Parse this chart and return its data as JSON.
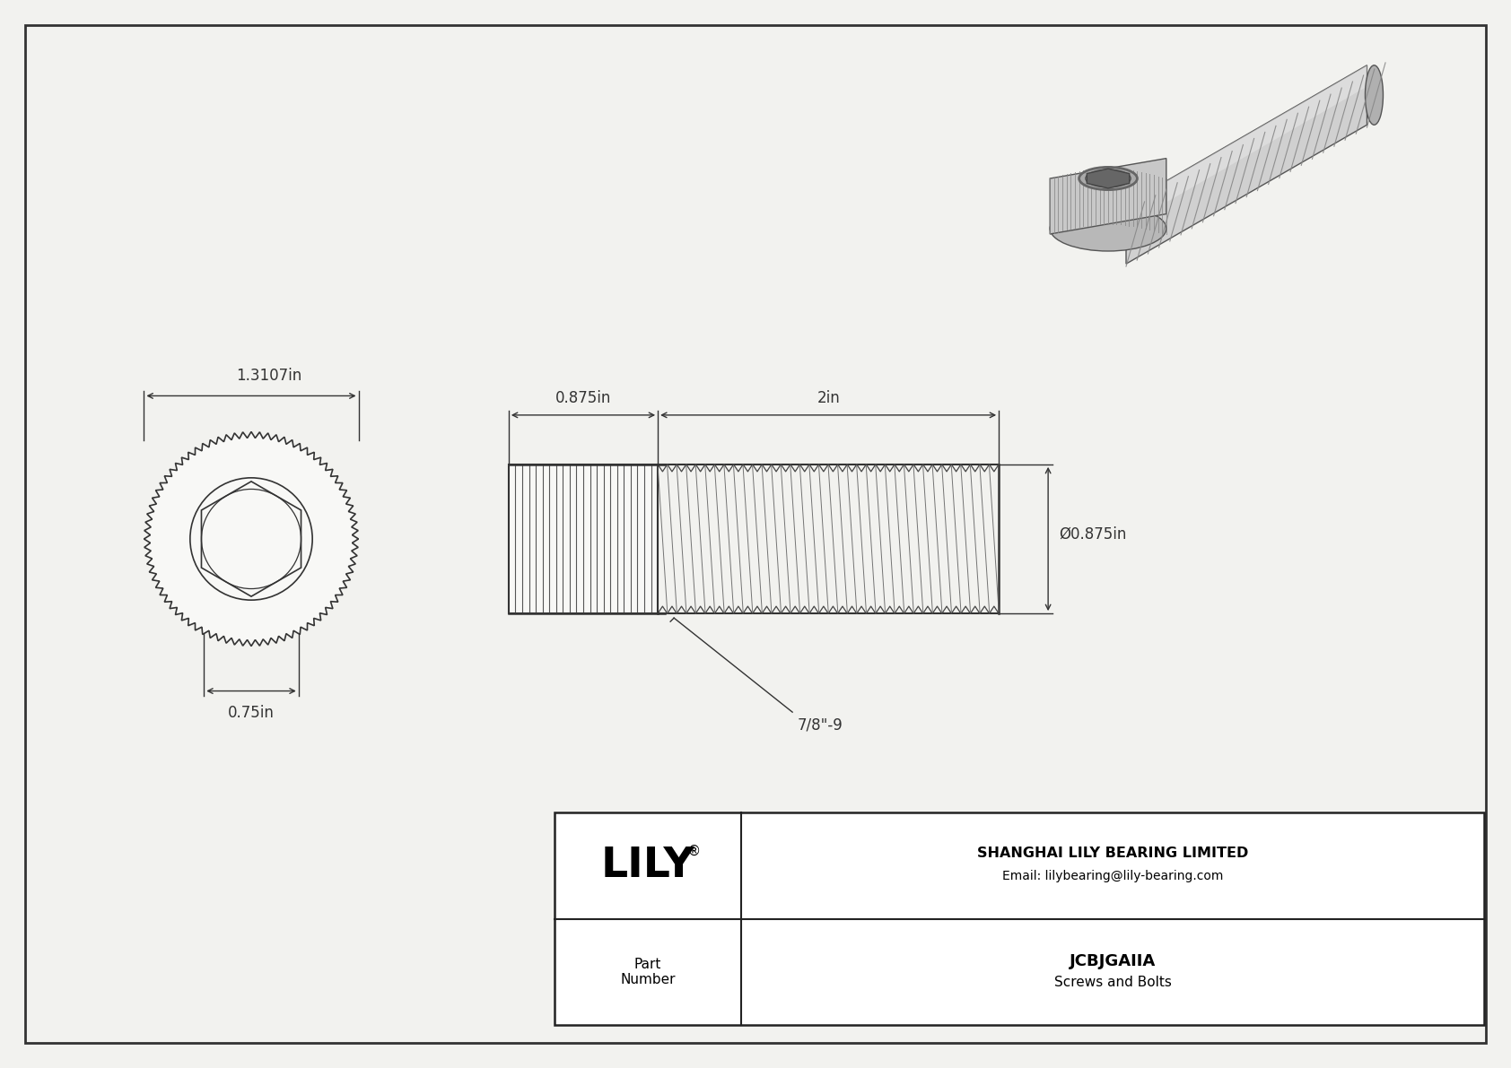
{
  "bg_color": "#f2f2ef",
  "border_color": "#333333",
  "line_color": "#333333",
  "dim_color": "#333333",
  "title_company": "SHANGHAI LILY BEARING LIMITED",
  "title_email": "Email: lilybearing@lily-bearing.com",
  "part_number": "JCBJGAIIA",
  "part_category": "Screws and Bolts",
  "dim_head_width": "1.3107in",
  "dim_hex_key": "0.75in",
  "dim_head_length": "0.875in",
  "dim_thread_length": "2in",
  "dim_thread_dia": "Ø0.875in",
  "dim_thread_label": "7/8\"-9",
  "font_size_dim": 12,
  "font_family": "DejaVu Sans"
}
